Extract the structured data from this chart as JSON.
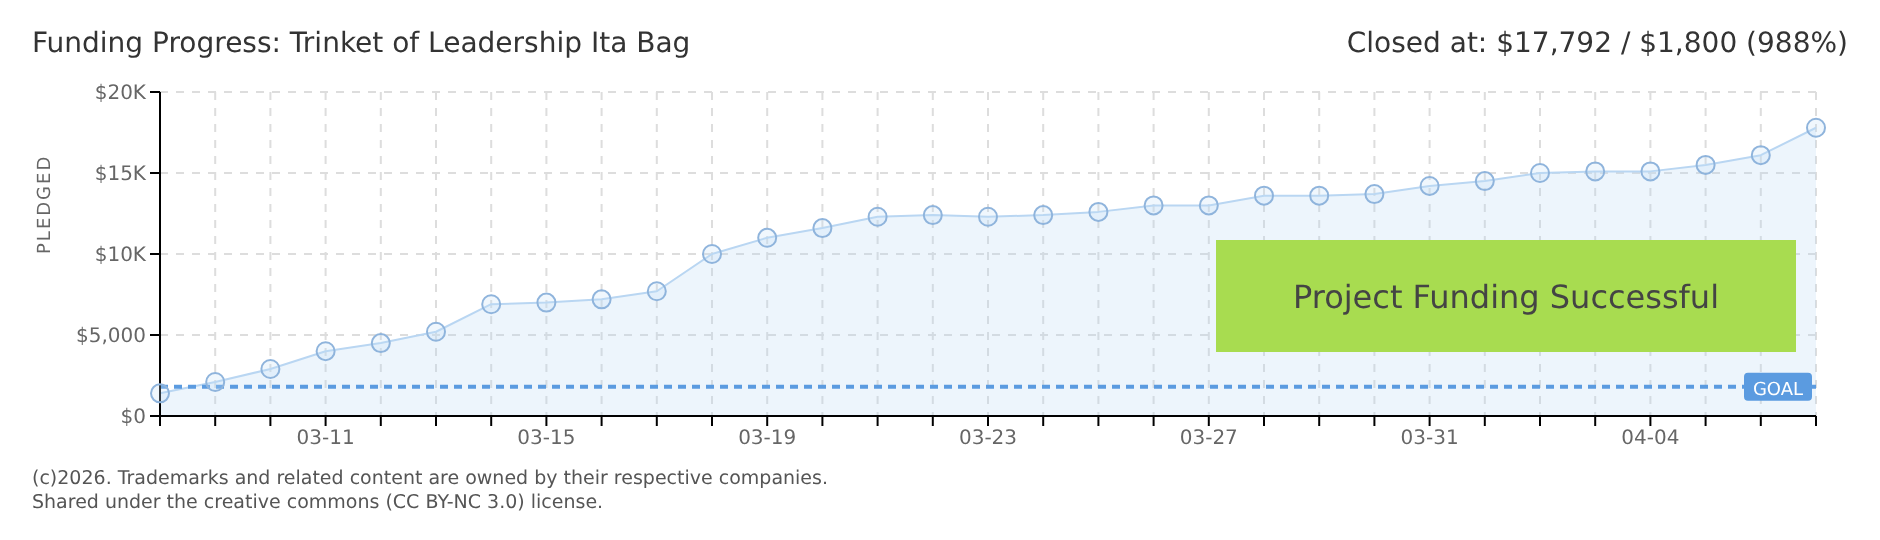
{
  "chart_data": {
    "type": "area",
    "title": "Funding Progress: Trinket of Leadership Ita Bag",
    "subtitle": "Closed at: $17,792 / $1,800 (988%)",
    "ylabel": "PLEDGED",
    "categories": [
      null,
      null,
      null,
      "03-11",
      null,
      null,
      null,
      "03-15",
      null,
      null,
      null,
      "03-19",
      null,
      null,
      null,
      "03-23",
      null,
      null,
      null,
      "03-27",
      null,
      null,
      null,
      "03-31",
      null,
      null,
      null,
      "04-04",
      null,
      null,
      null
    ],
    "series": [
      {
        "color": "#b9d6f2",
        "values": [
          1400,
          2100,
          2900,
          4000,
          4500,
          5200,
          6900,
          7000,
          7200,
          7700,
          10000,
          11000,
          11600,
          12300,
          12400,
          12300,
          12400,
          12600,
          13000,
          13000,
          13600,
          13600,
          13700,
          14200,
          14500,
          15000,
          15100,
          15100,
          15500,
          16100,
          17792
        ]
      }
    ],
    "ylim": [
      0,
      20000
    ],
    "yticks": [
      {
        "value": 0,
        "label": "$0"
      },
      {
        "value": 5000,
        "label": "$5,000"
      },
      {
        "value": 10000,
        "label": "$10K"
      },
      {
        "value": 15000,
        "label": "$15K"
      },
      {
        "value": 20000,
        "label": "$20K"
      }
    ],
    "grid": true,
    "marker": "circle",
    "line_style": "solid",
    "ref_lines": [
      {
        "axis": "y",
        "value": 1800,
        "label": "GOAL",
        "color": "#5b9be0",
        "line_style": "dashed"
      }
    ],
    "annotations": [
      "Project Funding Successful",
      "(c)2026. Trademarks and related content are owned by their respective companies.",
      "Shared under the creative commons (CC BY-NC 3.0) license."
    ]
  }
}
